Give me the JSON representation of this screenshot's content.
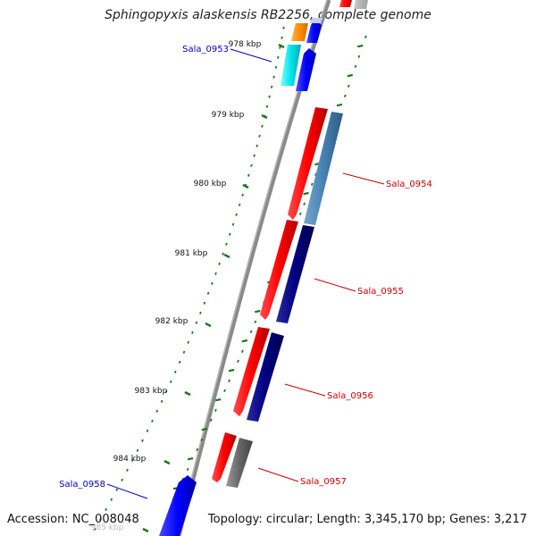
{
  "header": {
    "title": "Sphingopyxis alaskensis RB2256, complete genome"
  },
  "footer": {
    "accession": "Accession: NC_008048",
    "summary": "Topology: circular; Length: 3,345,170 bp; Genes: 3,217"
  },
  "ruler": {
    "ticks": [
      {
        "label": "978 kbp"
      },
      {
        "label": "979 kbp"
      },
      {
        "label": "980 kbp"
      },
      {
        "label": "981 kbp"
      },
      {
        "label": "982 kbp"
      },
      {
        "label": "983 kbp"
      },
      {
        "label": "984 kbp"
      },
      {
        "label": "985 kbp"
      }
    ]
  },
  "gene_labels": [
    {
      "name": "Sala_0953",
      "color": "#0000cc"
    },
    {
      "name": "Sala_0954",
      "color": "#cc0000"
    },
    {
      "name": "Sala_0955",
      "color": "#cc0000"
    },
    {
      "name": "Sala_0956",
      "color": "#cc0000"
    },
    {
      "name": "Sala_0957",
      "color": "#cc0000"
    },
    {
      "name": "Sala_0958",
      "color": "#0000cc"
    }
  ],
  "colors": {
    "cds_forward": "#ff0000",
    "cds_reverse": "#0000ff",
    "orf": "#4682b4",
    "orf_dark": "#000080",
    "tick": "#1a7a1a",
    "backbone": "#888888"
  }
}
